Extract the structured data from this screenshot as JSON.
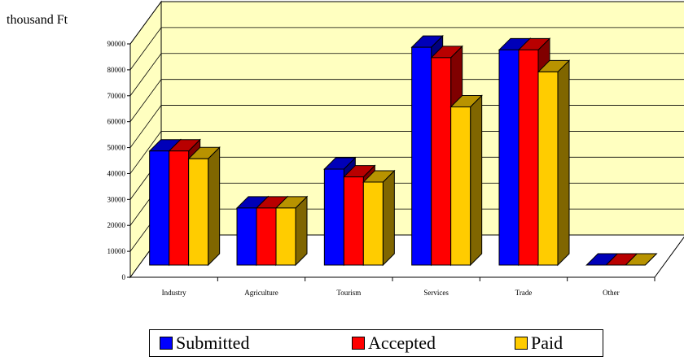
{
  "chart_data": {
    "type": "bar",
    "unit_label": "thousand Ft",
    "categories": [
      "Industry",
      "Agriculture",
      "Tourism",
      "Services",
      "Trade",
      "Other"
    ],
    "series": [
      {
        "name": "Submitted",
        "color": "#0000ff",
        "values": [
          44000,
          22000,
          37000,
          84000,
          83000,
          0
        ]
      },
      {
        "name": "Accepted",
        "color": "#ff0000",
        "values": [
          44000,
          22000,
          34000,
          80000,
          83000,
          0
        ]
      },
      {
        "name": "Paid",
        "color": "#ffcc00",
        "values": [
          41000,
          22000,
          32000,
          61000,
          74500,
          0
        ]
      }
    ],
    "yticks": [
      "0",
      "10000",
      "20000",
      "30000",
      "40000",
      "50000",
      "60000",
      "70000",
      "80000",
      "90000"
    ],
    "ylim": [
      0,
      90000
    ],
    "grid": true,
    "legend_position": "bottom",
    "wall_color": "#ffffc0"
  }
}
